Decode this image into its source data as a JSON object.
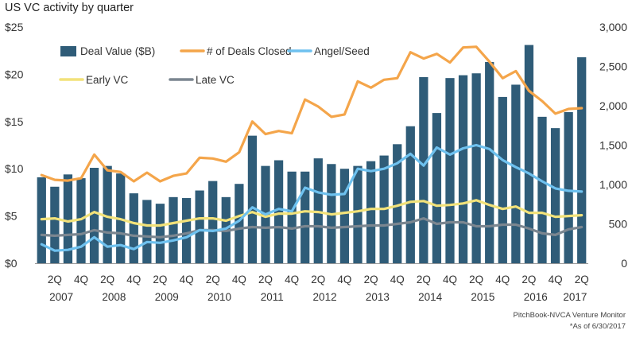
{
  "chart_data": {
    "type": "bar+line",
    "title": "US VC activity by quarter",
    "source": "PitchBook-NVCA Venture Monitor",
    "note": "*As of 6/30/2017",
    "colors": {
      "deal_value": "#2f5c78",
      "deals_closed": "#f4a54a",
      "angel_seed": "#6ec1ef",
      "early_vc": "#f2e27a",
      "late_vc": "#7b8690"
    },
    "quarters": [
      "2007Q1",
      "2007Q2",
      "2007Q3",
      "2007Q4",
      "2008Q1",
      "2008Q2",
      "2008Q3",
      "2008Q4",
      "2009Q1",
      "2009Q2",
      "2009Q3",
      "2009Q4",
      "2010Q1",
      "2010Q2",
      "2010Q3",
      "2010Q4",
      "2011Q1",
      "2011Q2",
      "2011Q3",
      "2011Q4",
      "2012Q1",
      "2012Q2",
      "2012Q3",
      "2012Q4",
      "2013Q1",
      "2013Q2",
      "2013Q3",
      "2013Q4",
      "2014Q1",
      "2014Q2",
      "2014Q3",
      "2014Q4",
      "2015Q1",
      "2015Q2",
      "2015Q3",
      "2015Q4",
      "2016Q1",
      "2016Q2",
      "2016Q3",
      "2016Q4",
      "2017Q1",
      "2017Q2"
    ],
    "x_tick_labels": [
      "2Q",
      "4Q",
      "2Q",
      "4Q",
      "2Q",
      "4Q",
      "2Q",
      "4Q",
      "2Q",
      "4Q",
      "2Q",
      "4Q",
      "2Q",
      "4Q",
      "2Q",
      "4Q",
      "2Q",
      "4Q",
      "2Q",
      "4Q",
      "2Q"
    ],
    "year_labels": [
      "2007",
      "2008",
      "2009",
      "2010",
      "2011",
      "2012",
      "2013",
      "2014",
      "2015",
      "2016",
      "2017"
    ],
    "y_left": {
      "label": "",
      "ticks": [
        "$0",
        "$5",
        "$10",
        "$15",
        "$20",
        "$25"
      ],
      "range": [
        0,
        25
      ]
    },
    "y_right": {
      "label": "",
      "ticks": [
        "0",
        "500",
        "1,000",
        "1,500",
        "2,000",
        "2,500",
        "3,000"
      ],
      "range": [
        0,
        3000
      ]
    },
    "legend_position": "top-left, inside plot",
    "series": [
      {
        "name": "Deal Value ($B)",
        "kind": "bar",
        "axis": "left",
        "values": [
          9.1,
          8.1,
          9.4,
          9.0,
          10.1,
          10.3,
          9.5,
          7.4,
          6.7,
          6.3,
          7.0,
          6.9,
          7.7,
          8.7,
          7.0,
          8.4,
          13.5,
          10.3,
          10.9,
          9.7,
          9.7,
          11.1,
          10.5,
          10.0,
          10.3,
          10.8,
          11.4,
          12.6,
          14.5,
          19.7,
          15.9,
          19.6,
          19.9,
          20.1,
          21.3,
          17.6,
          18.9,
          23.1,
          15.5,
          14.3,
          16.0,
          21.8
        ]
      },
      {
        "name": "# of Deals Closed",
        "kind": "line",
        "axis": "right",
        "values": [
          1120,
          1060,
          1050,
          1080,
          1380,
          1180,
          1160,
          1040,
          1150,
          1040,
          1110,
          1140,
          1340,
          1330,
          1290,
          1410,
          1800,
          1640,
          1680,
          1650,
          2080,
          1990,
          1860,
          1890,
          2310,
          2230,
          2330,
          2350,
          2680,
          2600,
          2660,
          2550,
          2740,
          2750,
          2560,
          2350,
          2440,
          2190,
          2060,
          1900,
          1960,
          1970
        ]
      },
      {
        "name": "Angel/Seed",
        "kind": "line",
        "axis": "right",
        "values": [
          240,
          160,
          170,
          210,
          330,
          210,
          230,
          180,
          270,
          260,
          290,
          330,
          420,
          410,
          440,
          540,
          710,
          620,
          690,
          660,
          960,
          900,
          870,
          880,
          1200,
          1170,
          1200,
          1270,
          1390,
          1240,
          1470,
          1380,
          1460,
          1500,
          1450,
          1310,
          1220,
          1140,
          1040,
          950,
          920,
          910
        ]
      },
      {
        "name": "Early VC",
        "kind": "line",
        "axis": "right",
        "values": [
          560,
          570,
          530,
          560,
          650,
          590,
          560,
          510,
          480,
          480,
          510,
          540,
          570,
          570,
          540,
          600,
          650,
          590,
          630,
          630,
          660,
          650,
          620,
          640,
          660,
          690,
          690,
          730,
          780,
          790,
          730,
          740,
          760,
          800,
          740,
          690,
          720,
          640,
          640,
          590,
          600,
          610
        ]
      },
      {
        "name": "Late VC",
        "kind": "line",
        "axis": "right",
        "values": [
          360,
          350,
          360,
          370,
          420,
          390,
          380,
          350,
          340,
          330,
          350,
          380,
          420,
          420,
          410,
          440,
          460,
          450,
          460,
          440,
          470,
          470,
          450,
          460,
          470,
          480,
          480,
          500,
          520,
          570,
          500,
          520,
          520,
          470,
          470,
          490,
          490,
          440,
          380,
          360,
          430,
          460
        ]
      }
    ]
  }
}
